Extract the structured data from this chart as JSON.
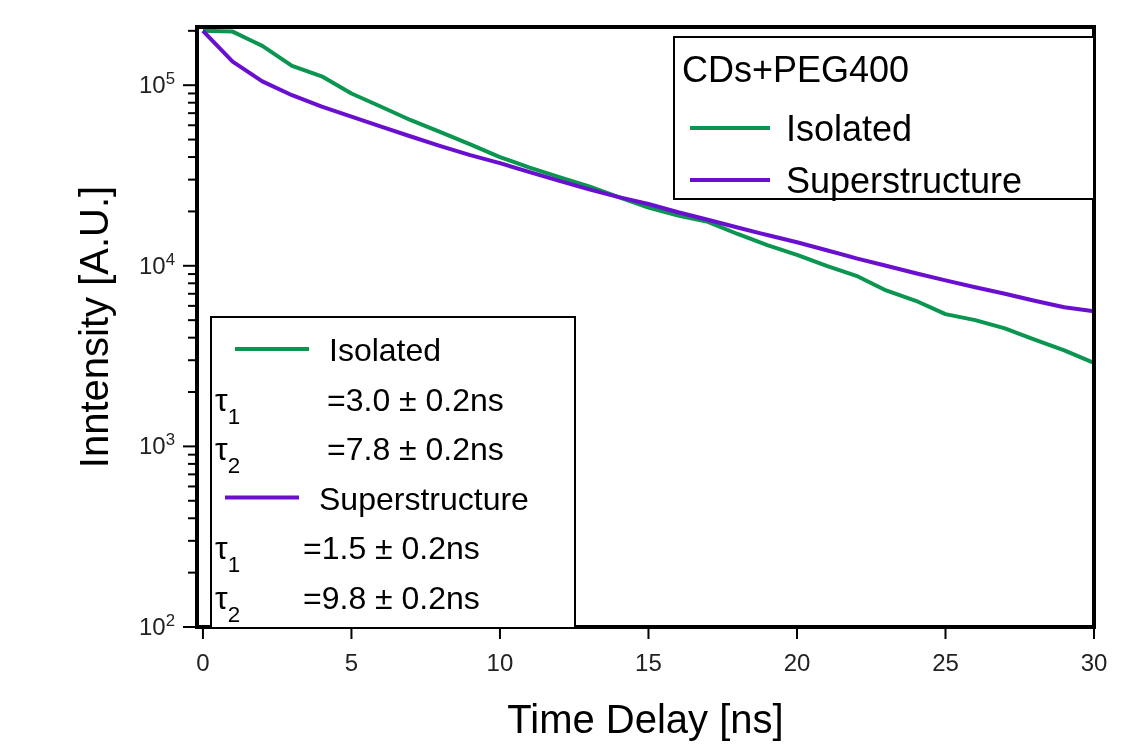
{
  "chart_data": {
    "type": "line",
    "xlabel": "Time Delay [ns]",
    "ylabel": "Inntensity [A.U.]",
    "legend_title": "CDs+PEG400",
    "legend": "top right",
    "log": "y",
    "xlim": [
      -0.2,
      30
    ],
    "xticks": [
      0,
      5,
      10,
      15,
      20,
      25,
      30
    ],
    "ylim": [
      100,
      210000
    ],
    "yticks": [
      {
        "value": 100,
        "label": "10$^{2}$"
      },
      {
        "value": 200,
        "label": null
      },
      {
        "value": 300,
        "label": null
      },
      {
        "value": 400,
        "label": null
      },
      {
        "value": 500,
        "label": null
      },
      {
        "value": 600,
        "label": null
      },
      {
        "value": 700,
        "label": null
      },
      {
        "value": 800,
        "label": null
      },
      {
        "value": 900,
        "label": null
      },
      {
        "value": 1000,
        "label": "10$^{3}$"
      },
      {
        "value": 2000,
        "label": null
      },
      {
        "value": 3000,
        "label": null
      },
      {
        "value": 4000,
        "label": null
      },
      {
        "value": 5000,
        "label": null
      },
      {
        "value": 6000,
        "label": null
      },
      {
        "value": 7000,
        "label": null
      },
      {
        "value": 8000,
        "label": null
      },
      {
        "value": 9000,
        "label": null
      },
      {
        "value": 10000,
        "label": "10$^{4}$"
      },
      {
        "value": 20000,
        "label": null
      },
      {
        "value": 30000,
        "label": null
      },
      {
        "value": 40000,
        "label": null
      },
      {
        "value": 50000,
        "label": null
      },
      {
        "value": 60000,
        "label": null
      },
      {
        "value": 70000,
        "label": null
      },
      {
        "value": 80000,
        "label": null
      },
      {
        "value": 90000,
        "label": null
      },
      {
        "value": 100000,
        "label": "10$^{5}$"
      },
      {
        "value": 200000,
        "label": null
      }
    ],
    "x": [
      0,
      1,
      2,
      3,
      4,
      5,
      6,
      7,
      8,
      9,
      10,
      11,
      12,
      13,
      14,
      15,
      16,
      17,
      18,
      19,
      20,
      21,
      22,
      23,
      24,
      25,
      26,
      27,
      28,
      29,
      30
    ],
    "series": [
      {
        "name": "Isolated",
        "color": "#0a9650",
        "values": [
          200000,
          198000,
          165000,
          128000,
          112000,
          90000,
          76000,
          64000,
          55000,
          47000,
          40000,
          35000,
          31000,
          27500,
          24000,
          21000,
          19000,
          17500,
          15000,
          13000,
          11500,
          10000,
          8800,
          7300,
          6400,
          5400,
          5000,
          4500,
          3900,
          3400,
          2900
        ]
      },
      {
        "name": "Superstructure",
        "color": "#6a0fd0",
        "values": [
          200000,
          135000,
          105000,
          88000,
          76000,
          67000,
          59000,
          52000,
          46000,
          41000,
          37000,
          33000,
          29500,
          26500,
          24000,
          22000,
          19800,
          18000,
          16300,
          14800,
          13500,
          12200,
          11000,
          10000,
          9100,
          8300,
          7600,
          7000,
          6400,
          5900,
          5600
        ]
      }
    ],
    "annotations": [
      "τ$_{1}$ =3.0 ± 0.2ns",
      "τ$_{2}$ =7.8 ± 0.2ns",
      "τ$_{1}$ =1.5 ± 0.2ns",
      "τ$_{2}$ =9.8 ± 0.2ns"
    ]
  }
}
